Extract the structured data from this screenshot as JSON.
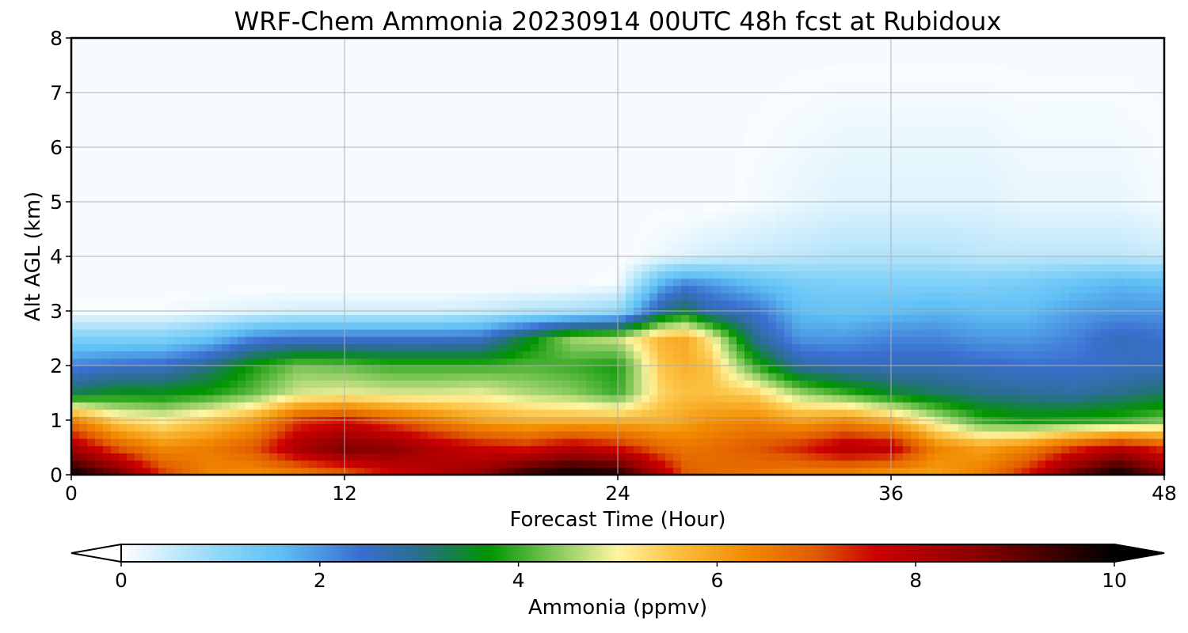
{
  "chart_data": {
    "type": "heatmap",
    "title": "WRF-Chem Ammonia  20230914 00UTC 48h fcst at Rubidoux",
    "xlabel": "Forecast Time (Hour)",
    "ylabel": "Alt AGL (km)",
    "xlim": [
      0,
      48
    ],
    "ylim": [
      0,
      8
    ],
    "x_ticks": [
      "0",
      "12",
      "24",
      "36",
      "48"
    ],
    "y_ticks": [
      "0",
      "1",
      "2",
      "3",
      "4",
      "5",
      "6",
      "7",
      "8"
    ],
    "grid": true,
    "colorbar": {
      "label": "Ammonia  (ppmv)",
      "range": [
        0,
        10
      ],
      "ticks": [
        "0",
        "2",
        "4",
        "6",
        "8",
        "10"
      ],
      "extend": "both",
      "stops": [
        {
          "v": 0.0,
          "color": "#ffffff"
        },
        {
          "v": 1.0,
          "color": "#8ed6f8"
        },
        {
          "v": 1.6,
          "color": "#5fc0f5"
        },
        {
          "v": 2.4,
          "color": "#3a6fd0"
        },
        {
          "v": 3.0,
          "color": "#2a6e8c"
        },
        {
          "v": 3.7,
          "color": "#009400"
        },
        {
          "v": 4.4,
          "color": "#8acb60"
        },
        {
          "v": 5.0,
          "color": "#fff5a0"
        },
        {
          "v": 5.6,
          "color": "#fbc040"
        },
        {
          "v": 6.3,
          "color": "#f28a00"
        },
        {
          "v": 7.0,
          "color": "#e05a00"
        },
        {
          "v": 7.6,
          "color": "#cc0000"
        },
        {
          "v": 8.6,
          "color": "#8b0000"
        },
        {
          "v": 10.0,
          "color": "#000000"
        }
      ],
      "under_color": "#ffffff",
      "over_color": "#000000"
    },
    "background_color": "#f7fbff",
    "x_hours": [
      0,
      2,
      4,
      6,
      8,
      10,
      12,
      14,
      16,
      18,
      20,
      22,
      24,
      26,
      27,
      28,
      30,
      32,
      34,
      36,
      38,
      40,
      42,
      44,
      46,
      48
    ],
    "alt_km": [
      0,
      0.5,
      1,
      1.5,
      2,
      2.5,
      3,
      3.5,
      4,
      5,
      8
    ],
    "values_ppmv": [
      [
        10.0,
        8.2,
        6.5,
        3.3,
        2.2,
        1.2,
        0.1,
        0.0,
        0.0,
        0.0,
        0.0
      ],
      [
        9.0,
        7.0,
        5.4,
        3.6,
        2.4,
        1.2,
        0.1,
        0.0,
        0.0,
        0.0,
        0.0
      ],
      [
        7.3,
        6.3,
        5.1,
        3.6,
        2.5,
        1.2,
        0.1,
        0.0,
        0.0,
        0.0,
        0.0
      ],
      [
        6.4,
        6.5,
        5.5,
        3.8,
        3.0,
        1.5,
        0.2,
        0.0,
        0.0,
        0.0,
        0.0
      ],
      [
        6.2,
        7.0,
        6.0,
        4.2,
        3.8,
        2.2,
        0.3,
        0.0,
        0.0,
        0.0,
        0.0
      ],
      [
        6.4,
        8.2,
        7.2,
        4.8,
        4.3,
        2.4,
        0.4,
        0.0,
        0.0,
        0.0,
        0.0
      ],
      [
        6.8,
        8.8,
        7.5,
        4.9,
        4.2,
        2.4,
        0.4,
        0.0,
        0.0,
        0.0,
        0.0
      ],
      [
        7.5,
        8.6,
        7.0,
        4.8,
        4.0,
        2.4,
        0.4,
        0.0,
        0.0,
        0.0,
        0.0
      ],
      [
        8.0,
        8.0,
        6.5,
        4.8,
        4.0,
        2.4,
        0.4,
        0.0,
        0.0,
        0.0,
        0.0
      ],
      [
        8.5,
        7.6,
        6.0,
        4.9,
        4.0,
        2.5,
        0.5,
        0.0,
        0.0,
        0.0,
        0.0
      ],
      [
        9.6,
        7.4,
        5.8,
        4.6,
        4.1,
        3.5,
        0.7,
        0.0,
        0.0,
        0.0,
        0.0
      ],
      [
        10.0,
        7.9,
        5.8,
        4.4,
        4.0,
        4.5,
        0.8,
        0.0,
        0.0,
        0.0,
        0.0
      ],
      [
        9.8,
        7.5,
        5.8,
        4.0,
        3.8,
        4.7,
        1.0,
        0.1,
        0.0,
        0.0,
        0.0
      ],
      [
        8.0,
        6.8,
        5.8,
        5.4,
        5.6,
        5.8,
        3.0,
        1.8,
        0.2,
        0.0,
        0.0
      ],
      [
        7.0,
        6.6,
        6.0,
        5.6,
        5.8,
        5.9,
        3.4,
        2.2,
        0.3,
        0.0,
        0.0
      ],
      [
        6.8,
        6.7,
        6.2,
        5.6,
        5.6,
        5.2,
        2.8,
        2.0,
        0.4,
        0.0,
        0.0
      ],
      [
        6.6,
        7.0,
        6.4,
        5.4,
        4.0,
        3.0,
        2.4,
        1.6,
        0.5,
        0.1,
        0.0
      ],
      [
        6.4,
        7.4,
        6.0,
        4.5,
        2.8,
        2.0,
        1.6,
        1.3,
        0.6,
        0.2,
        0.0
      ],
      [
        6.3,
        8.0,
        6.3,
        4.0,
        2.6,
        2.0,
        1.5,
        1.2,
        0.7,
        0.3,
        0.0
      ],
      [
        6.0,
        7.9,
        5.8,
        3.5,
        2.6,
        2.2,
        1.6,
        1.2,
        0.7,
        0.3,
        0.0
      ],
      [
        6.0,
        6.4,
        4.8,
        3.2,
        2.6,
        2.2,
        1.7,
        1.2,
        0.7,
        0.3,
        0.0
      ],
      [
        6.5,
        6.0,
        4.0,
        3.0,
        2.5,
        2.0,
        1.6,
        1.2,
        0.6,
        0.3,
        0.0
      ],
      [
        7.5,
        6.4,
        3.8,
        2.9,
        2.4,
        2.0,
        1.6,
        1.3,
        0.6,
        0.2,
        0.0
      ],
      [
        9.0,
        7.2,
        3.9,
        2.8,
        2.4,
        2.2,
        1.9,
        1.5,
        0.6,
        0.2,
        0.0
      ],
      [
        10.0,
        7.9,
        4.0,
        3.0,
        2.5,
        2.6,
        2.0,
        1.7,
        0.6,
        0.2,
        0.0
      ],
      [
        8.8,
        7.2,
        4.3,
        3.2,
        2.6,
        2.4,
        2.0,
        1.6,
        0.5,
        0.1,
        0.0
      ]
    ]
  }
}
